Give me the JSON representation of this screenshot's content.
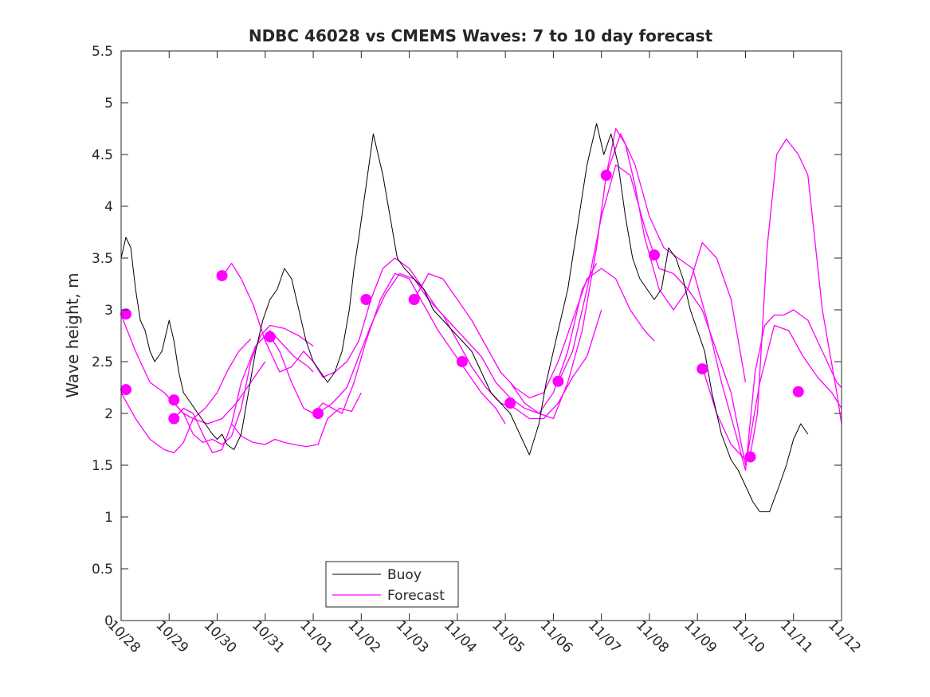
{
  "chart_data": {
    "type": "line",
    "title": "NDBC 46028 vs CMEMS Waves: 7 to 10 day forecast",
    "xlabel": "",
    "ylabel": "Wave height, m",
    "ylim": [
      0,
      5.5
    ],
    "yticks": [
      0,
      0.5,
      1,
      1.5,
      2,
      2.5,
      3,
      3.5,
      4,
      4.5,
      5,
      5.5
    ],
    "ytick_labels": [
      "0",
      "0.5",
      "1",
      "1.5",
      "2",
      "2.5",
      "3",
      "3.5",
      "4",
      "4.5",
      "5",
      "5.5"
    ],
    "xlim_days": [
      0,
      15
    ],
    "x_unit": "days since 10/28",
    "xtick_labels": [
      "10/28",
      "10/29",
      "10/30",
      "10/31",
      "11/01",
      "11/02",
      "11/03",
      "11/04",
      "11/05",
      "11/06",
      "11/07",
      "11/08",
      "11/09",
      "11/10",
      "11/11",
      "11/12"
    ],
    "grid": false,
    "legend": {
      "placement": "bottom-center",
      "entries": [
        "Buoy",
        "Forecast"
      ]
    },
    "colors": {
      "buoy": "#000000",
      "forecast": "#ff00ff",
      "axis": "#262626"
    },
    "series": [
      {
        "name": "Buoy",
        "x": [
          0.0,
          0.1,
          0.2,
          0.3,
          0.4,
          0.5,
          0.6,
          0.7,
          0.85,
          1.0,
          1.1,
          1.2,
          1.3,
          1.45,
          1.6,
          1.75,
          1.9,
          2.0,
          2.1,
          2.2,
          2.35,
          2.5,
          2.65,
          2.8,
          2.95,
          3.1,
          3.25,
          3.4,
          3.55,
          3.7,
          3.85,
          4.0,
          4.15,
          4.3,
          4.45,
          4.6,
          4.75,
          4.85,
          4.95,
          5.1,
          5.25,
          5.45,
          5.6,
          5.75,
          5.9,
          6.1,
          6.3,
          6.5,
          6.7,
          6.9,
          7.1,
          7.3,
          7.5,
          7.7,
          7.9,
          8.1,
          8.3,
          8.5,
          8.7,
          8.85,
          9.0,
          9.15,
          9.3,
          9.5,
          9.7,
          9.9,
          10.05,
          10.2,
          10.35,
          10.5,
          10.65,
          10.8,
          10.95,
          11.1,
          11.25,
          11.4,
          11.55,
          11.7,
          11.85,
          12.0,
          12.15,
          12.3,
          12.5,
          12.7,
          12.85,
          13.0,
          13.15,
          13.3,
          13.5,
          13.7,
          13.85,
          14.0,
          14.15,
          14.3
        ],
        "values": [
          3.5,
          3.7,
          3.6,
          3.2,
          2.9,
          2.8,
          2.6,
          2.5,
          2.6,
          2.9,
          2.7,
          2.4,
          2.2,
          2.1,
          2.0,
          1.9,
          1.8,
          1.75,
          1.8,
          1.7,
          1.65,
          1.8,
          2.2,
          2.6,
          2.9,
          3.1,
          3.2,
          3.4,
          3.3,
          3.0,
          2.7,
          2.5,
          2.4,
          2.3,
          2.4,
          2.6,
          3.0,
          3.4,
          3.7,
          4.2,
          4.7,
          4.3,
          3.9,
          3.5,
          3.4,
          3.3,
          3.2,
          3.0,
          2.9,
          2.8,
          2.7,
          2.6,
          2.4,
          2.2,
          2.1,
          2.0,
          1.8,
          1.6,
          1.9,
          2.3,
          2.6,
          2.9,
          3.2,
          3.8,
          4.4,
          4.8,
          4.5,
          4.7,
          4.4,
          3.9,
          3.5,
          3.3,
          3.2,
          3.1,
          3.2,
          3.6,
          3.5,
          3.3,
          3.0,
          2.8,
          2.6,
          2.2,
          1.8,
          1.55,
          1.45,
          1.3,
          1.15,
          1.05,
          1.05,
          1.3,
          1.5,
          1.75,
          1.9,
          1.8
        ]
      },
      {
        "name": "Forecast",
        "x": [
          0.0,
          0.3,
          0.6,
          0.9,
          1.1,
          1.3,
          1.5,
          1.75,
          2.0,
          2.2,
          2.45,
          2.7
        ],
        "values": [
          2.2,
          1.95,
          1.75,
          1.65,
          1.62,
          1.72,
          1.95,
          2.05,
          2.2,
          2.4,
          2.6,
          2.72
        ]
      },
      {
        "name": "Forecast",
        "x": [
          0.0,
          0.3,
          0.6,
          0.9,
          1.1,
          1.3,
          1.5,
          1.8,
          2.1,
          2.4,
          2.7,
          3.0
        ],
        "values": [
          2.95,
          2.6,
          2.3,
          2.2,
          2.1,
          2.0,
          1.95,
          1.9,
          1.95,
          2.1,
          2.3,
          2.5
        ]
      },
      {
        "name": "Forecast",
        "x": [
          1.1,
          1.3,
          1.5,
          1.7,
          1.9,
          2.1,
          2.3,
          2.5,
          2.7,
          2.9,
          3.1,
          3.4,
          3.7,
          4.0
        ],
        "values": [
          2.1,
          2.0,
          1.8,
          1.72,
          1.75,
          1.7,
          1.78,
          2.05,
          2.5,
          2.75,
          2.85,
          2.82,
          2.75,
          2.65
        ]
      },
      {
        "name": "Forecast",
        "x": [
          1.1,
          1.3,
          1.5,
          1.7,
          1.9,
          2.1,
          2.3,
          2.5,
          2.8,
          3.1,
          3.3,
          3.6,
          3.9,
          4.0
        ],
        "values": [
          1.95,
          2.05,
          2.0,
          1.8,
          1.62,
          1.65,
          1.9,
          2.3,
          2.65,
          2.8,
          2.7,
          2.55,
          2.45,
          2.4
        ]
      },
      {
        "name": "Forecast",
        "x": [
          2.15,
          2.3,
          2.5,
          2.75,
          3.0,
          3.3,
          3.55,
          3.8,
          4.0,
          4.2,
          4.45,
          4.7,
          4.95,
          5.2,
          5.45,
          5.7,
          6.0,
          6.3,
          6.6,
          6.9,
          7.2,
          7.5,
          7.8,
          8.1,
          8.4,
          8.7,
          9.0,
          9.3,
          9.6,
          9.9
        ],
        "values": [
          3.35,
          3.45,
          3.3,
          3.05,
          2.7,
          2.4,
          2.45,
          2.6,
          2.5,
          2.35,
          2.4,
          2.5,
          2.7,
          3.1,
          3.4,
          3.5,
          3.4,
          3.2,
          3.0,
          2.85,
          2.7,
          2.55,
          2.3,
          2.15,
          2.05,
          2.0,
          2.2,
          2.6,
          3.2,
          3.45
        ]
      },
      {
        "name": "Forecast",
        "x": [
          2.3,
          2.5,
          2.75,
          3.0,
          3.2,
          3.4,
          3.6,
          3.85,
          4.1,
          4.3,
          4.55,
          4.8,
          5.0
        ],
        "values": [
          1.9,
          1.78,
          1.72,
          1.7,
          1.75,
          1.72,
          1.7,
          1.68,
          1.7,
          1.95,
          2.05,
          2.02,
          2.2
        ]
      },
      {
        "name": "Forecast",
        "x": [
          3.1,
          3.3,
          3.55,
          3.8,
          4.0,
          4.2,
          4.4,
          4.6,
          4.85,
          5.1,
          5.4,
          5.7,
          6.0,
          6.3,
          6.6,
          6.9,
          7.2,
          7.5,
          7.8,
          8.0
        ],
        "values": [
          2.75,
          2.6,
          2.3,
          2.05,
          2.0,
          2.1,
          2.05,
          2.0,
          2.3,
          2.7,
          3.1,
          3.35,
          3.3,
          3.05,
          2.8,
          2.6,
          2.4,
          2.2,
          2.05,
          1.9
        ]
      },
      {
        "name": "Forecast",
        "x": [
          4.1,
          4.4,
          4.7,
          4.95,
          5.2,
          5.5,
          5.8,
          6.1,
          6.4,
          6.7,
          7.0,
          7.3,
          7.6,
          7.9,
          8.2,
          8.5,
          8.8,
          9.1,
          9.4,
          9.7,
          10.0
        ],
        "values": [
          2.0,
          2.1,
          2.25,
          2.55,
          2.85,
          3.15,
          3.35,
          3.3,
          3.1,
          2.95,
          2.7,
          2.45,
          2.25,
          2.1,
          2.05,
          1.95,
          1.95,
          2.1,
          2.35,
          2.55,
          3.0
        ]
      },
      {
        "name": "Forecast",
        "x": [
          6.1,
          6.4,
          6.7,
          7.0,
          7.3,
          7.6,
          7.9,
          8.2,
          8.5,
          8.8,
          9.1,
          9.4,
          9.7,
          10.0,
          10.3,
          10.6,
          10.9,
          11.1
        ],
        "values": [
          3.1,
          3.35,
          3.3,
          3.1,
          2.9,
          2.65,
          2.4,
          2.25,
          2.15,
          2.2,
          2.5,
          2.9,
          3.3,
          3.4,
          3.3,
          3.0,
          2.8,
          2.7
        ]
      },
      {
        "name": "Forecast",
        "x": [
          8.1,
          8.4,
          8.7,
          9.0,
          9.3,
          9.6,
          9.9,
          10.1,
          10.3,
          10.5,
          10.7,
          10.9,
          11.2,
          11.5,
          11.8,
          12.1,
          12.4,
          12.7,
          13.0
        ],
        "values": [
          2.3,
          2.1,
          2.0,
          1.95,
          2.3,
          2.8,
          3.6,
          4.3,
          4.75,
          4.6,
          4.2,
          3.7,
          3.2,
          3.0,
          3.2,
          3.65,
          3.5,
          3.1,
          2.3
        ]
      },
      {
        "name": "Forecast",
        "x": [
          9.1,
          9.4,
          9.7,
          10.0,
          10.3,
          10.6,
          10.9,
          11.2,
          11.5,
          11.8,
          12.1,
          12.4,
          12.7,
          13.0,
          13.3,
          13.6,
          13.9,
          14.2,
          14.5,
          14.8,
          15.0
        ],
        "values": [
          2.3,
          2.6,
          3.2,
          3.9,
          4.4,
          4.3,
          3.8,
          3.4,
          3.35,
          3.2,
          3.0,
          2.6,
          2.2,
          1.5,
          2.3,
          2.85,
          2.8,
          2.55,
          2.35,
          2.2,
          2.05
        ]
      },
      {
        "name": "Forecast",
        "x": [
          10.1,
          10.4,
          10.7,
          11.0,
          11.3,
          11.6,
          11.9,
          12.2,
          12.5,
          12.8,
          13.0,
          13.2,
          13.4,
          13.6,
          13.8,
          14.0,
          14.3,
          14.6,
          14.9,
          15.0
        ],
        "values": [
          4.3,
          4.7,
          4.4,
          3.9,
          3.6,
          3.5,
          3.4,
          2.9,
          2.3,
          1.8,
          1.45,
          2.4,
          2.85,
          2.95,
          2.95,
          3.0,
          2.9,
          2.6,
          2.3,
          2.25
        ]
      },
      {
        "name": "Forecast",
        "x": [
          12.1,
          12.4,
          12.7,
          13.0,
          13.1,
          13.25,
          13.45,
          13.65,
          13.85,
          14.1,
          14.3,
          14.6,
          14.9,
          15.0
        ],
        "values": [
          2.45,
          2.0,
          1.7,
          1.55,
          1.6,
          2.0,
          3.6,
          4.5,
          4.65,
          4.5,
          4.3,
          3.0,
          2.2,
          1.9
        ]
      }
    ],
    "markers": {
      "name": "Forecast start",
      "x": [
        0.1,
        0.1,
        1.1,
        1.1,
        2.1,
        3.1,
        4.1,
        5.1,
        6.1,
        7.1,
        8.1,
        9.1,
        10.1,
        11.1,
        12.1,
        13.1,
        14.1
      ],
      "values": [
        2.96,
        2.23,
        2.13,
        1.95,
        3.33,
        2.74,
        2.0,
        3.1,
        3.1,
        2.5,
        2.1,
        2.31,
        4.3,
        3.53,
        2.43,
        1.58,
        2.21
      ]
    }
  }
}
